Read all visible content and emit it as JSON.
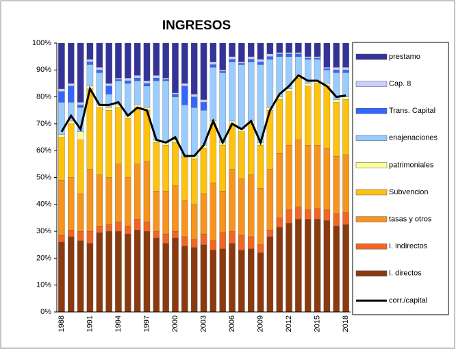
{
  "chart_data": {
    "type": "stacked_bar",
    "title": "INGRESOS",
    "categories": [
      "1988",
      null,
      null,
      "1991",
      null,
      null,
      "1994",
      null,
      null,
      "1997",
      null,
      null,
      "2000",
      null,
      null,
      "2003",
      null,
      null,
      "2006",
      null,
      null,
      "2009",
      null,
      null,
      "2012",
      null,
      null,
      "2015",
      null,
      null,
      "2018"
    ],
    "ylim": [
      0,
      100
    ],
    "yticks": [
      {
        "value": 0,
        "label": "0%"
      },
      {
        "value": 10,
        "label": "10%"
      },
      {
        "value": 20,
        "label": "20%"
      },
      {
        "value": 30,
        "label": "30%"
      },
      {
        "value": 40,
        "label": "40%"
      },
      {
        "value": 50,
        "label": "50%"
      },
      {
        "value": 60,
        "label": "60%"
      },
      {
        "value": 70,
        "label": "70%"
      },
      {
        "value": 80,
        "label": "80%"
      },
      {
        "value": 90,
        "label": "90%"
      },
      {
        "value": 100,
        "label": "100%"
      }
    ],
    "grid": false,
    "legend": "right",
    "series": [
      {
        "name": "I. directos",
        "color": "#8b3a10",
        "values": [
          26,
          28,
          26.5,
          25.5,
          29.5,
          30,
          30,
          29,
          30.5,
          30,
          27.5,
          25.5,
          27.5,
          24.5,
          24,
          25,
          23,
          23.5,
          25.5,
          23,
          23.5,
          22,
          28,
          31.5,
          33,
          34.5,
          34.5,
          34.5,
          34,
          32,
          32.5
        ]
      },
      {
        "name": "I. indirectos",
        "color": "#f26522",
        "values": [
          2.5,
          2.5,
          3.5,
          4.5,
          2.5,
          2.5,
          3.5,
          3,
          4,
          3.5,
          2.5,
          3.5,
          2.5,
          3.5,
          3,
          4,
          3.5,
          6,
          4.5,
          5.5,
          4.5,
          3,
          2.5,
          3.5,
          5,
          4.5,
          3.5,
          4,
          4,
          4.5,
          4.5
        ]
      },
      {
        "name": "tasas y otros",
        "color": "#f7941d",
        "values": [
          20.5,
          19.5,
          14,
          23,
          19,
          17.5,
          21.5,
          18,
          20.5,
          22.5,
          15,
          16,
          17,
          13.5,
          13,
          15,
          21.5,
          15.5,
          23,
          21,
          23,
          21,
          22.5,
          24,
          24,
          25,
          24,
          23.5,
          23,
          21.5,
          21.5
        ]
      },
      {
        "name": "Subvencion",
        "color": "#ffc20e",
        "values": [
          16,
          20,
          20,
          30,
          25,
          25,
          21,
          22,
          21,
          19,
          18,
          17,
          16,
          16,
          17,
          17,
          22,
          17,
          17,
          17.5,
          19,
          16,
          22,
          20,
          20,
          23,
          22,
          23,
          23,
          20,
          20.5
        ]
      },
      {
        "name": "patrimoniales",
        "color": "#ffff99",
        "values": [
          1,
          1,
          3,
          1,
          1,
          1,
          1,
          1,
          1,
          1,
          1,
          1,
          1,
          0.5,
          1,
          1,
          1,
          1,
          1,
          1,
          1,
          1,
          1,
          1,
          1,
          1,
          1,
          1,
          1,
          1,
          1
        ]
      },
      {
        "name": "enajenaciones",
        "color": "#99ccff",
        "values": [
          12,
          7,
          9,
          8,
          12,
          5,
          9,
          12,
          9,
          8,
          22,
          23,
          16,
          19,
          18,
          13,
          20,
          26,
          22,
          24,
          22,
          29,
          18,
          15,
          12,
          7,
          9,
          8,
          5,
          10,
          9
        ]
      },
      {
        "name": "Trans. Capital",
        "color": "#3366ff",
        "values": [
          4,
          6,
          1,
          1,
          1,
          3,
          0.5,
          1,
          1,
          1,
          1,
          0.5,
          1,
          7,
          4,
          3,
          1,
          0.5,
          1,
          0.5,
          1,
          1,
          1,
          1,
          1,
          1,
          0.5,
          0.5,
          0.5,
          1,
          1
        ]
      },
      {
        "name": "Cap. 8",
        "color": "#ccccff",
        "values": [
          1,
          1,
          1,
          1,
          1,
          1,
          0.5,
          1,
          1,
          1,
          1,
          0.5,
          0.5,
          1,
          1,
          1,
          1,
          0.5,
          1,
          0.5,
          1,
          1,
          1,
          0.5,
          0.5,
          0.5,
          0.5,
          0.5,
          0.5,
          1,
          1
        ]
      },
      {
        "name": "prestamo",
        "color": "#333399",
        "values": [
          17,
          15,
          22,
          6,
          9,
          15,
          13,
          13,
          12,
          14,
          12,
          13,
          18.5,
          15,
          19,
          21,
          7,
          10,
          5,
          7,
          5,
          6,
          4,
          3.5,
          3.5,
          3.5,
          5,
          5,
          9,
          9,
          9
        ]
      }
    ],
    "line": {
      "name": "corr./capital",
      "color": "#000000",
      "values": [
        67,
        73,
        68,
        83,
        77,
        77,
        78,
        73,
        76,
        75,
        64,
        63,
        65,
        58,
        58,
        62,
        71,
        63,
        70,
        68,
        71,
        63,
        75,
        81,
        84,
        88,
        86,
        86,
        84,
        80,
        80.5
      ]
    }
  }
}
